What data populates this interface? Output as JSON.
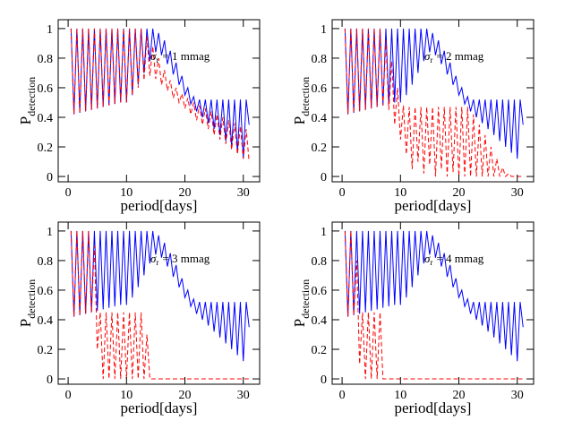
{
  "chart_data": [
    {
      "type": "line",
      "xlabel": "period[days]",
      "ylabel": {
        "main": "P",
        "sub": "detection"
      },
      "annotation": {
        "symbol": "σ",
        "sub": "r",
        "text": "= 1 mmag"
      },
      "xlim": [
        -1.7,
        32.8
      ],
      "ylim": [
        -0.036,
        1.06
      ],
      "xticks": [
        0,
        10,
        20,
        30
      ],
      "yticks": [
        0,
        0.2,
        0.4,
        0.6,
        0.8,
        1
      ],
      "x": [
        0.5,
        1,
        1.5,
        2,
        2.5,
        3,
        3.5,
        4,
        4.5,
        5,
        5.5,
        6,
        6.5,
        7,
        7.5,
        8,
        8.5,
        9,
        9.5,
        10,
        10.5,
        11,
        11.5,
        12,
        12.5,
        13,
        13.5,
        14,
        14.5,
        15,
        15.5,
        16,
        16.5,
        17,
        17.5,
        18,
        18.5,
        19,
        19.5,
        20,
        20.5,
        21,
        21.5,
        22,
        22.5,
        23,
        23.5,
        24,
        24.5,
        25,
        25.5,
        26,
        26.5,
        27,
        27.5,
        28,
        28.5,
        29,
        29.5,
        30,
        30.5,
        31
      ],
      "series": [
        {
          "color": "#0000ff",
          "dash": false,
          "values": [
            1,
            0.42,
            1,
            0.43,
            1,
            0.44,
            1,
            0.45,
            1,
            0.46,
            1,
            0.47,
            1,
            0.48,
            1,
            0.49,
            1,
            0.5,
            1,
            0.5,
            1,
            0.55,
            1,
            0.62,
            1,
            0.7,
            1,
            0.78,
            1,
            0.84,
            0.97,
            0.82,
            0.92,
            0.76,
            0.85,
            0.69,
            0.77,
            0.62,
            0.68,
            0.55,
            0.6,
            0.49,
            0.54,
            0.44,
            0.52,
            0.4,
            0.52,
            0.36,
            0.52,
            0.32,
            0.52,
            0.28,
            0.52,
            0.24,
            0.52,
            0.2,
            0.52,
            0.16,
            0.52,
            0.12,
            0.52,
            0.35
          ]
        },
        {
          "color": "#ff0000",
          "dash": true,
          "values": [
            1,
            0.42,
            1,
            0.43,
            1,
            0.44,
            1,
            0.45,
            1,
            0.46,
            1,
            0.47,
            1,
            0.48,
            1,
            0.49,
            1,
            0.5,
            1,
            0.5,
            1,
            0.55,
            1,
            0.6,
            1,
            0.65,
            0.95,
            0.68,
            0.88,
            0.66,
            0.8,
            0.62,
            0.72,
            0.58,
            0.65,
            0.53,
            0.6,
            0.5,
            0.56,
            0.46,
            0.53,
            0.42,
            0.5,
            0.38,
            0.48,
            0.35,
            0.46,
            0.32,
            0.44,
            0.28,
            0.42,
            0.25,
            0.4,
            0.22,
            0.38,
            0.18,
            0.36,
            0.15,
            0.34,
            0.12,
            0.32,
            0.1
          ]
        }
      ]
    },
    {
      "type": "line",
      "xlabel": "period[days]",
      "ylabel": {
        "main": "P",
        "sub": "detection"
      },
      "annotation": {
        "symbol": "σ",
        "sub": "r",
        "text": "= 2 mmag"
      },
      "xlim": [
        -1.7,
        32.8
      ],
      "ylim": [
        -0.036,
        1.06
      ],
      "xticks": [
        0,
        10,
        20,
        30
      ],
      "yticks": [
        0,
        0.2,
        0.4,
        0.6,
        0.8,
        1
      ],
      "x": [
        0.5,
        1,
        1.5,
        2,
        2.5,
        3,
        3.5,
        4,
        4.5,
        5,
        5.5,
        6,
        6.5,
        7,
        7.5,
        8,
        8.5,
        9,
        9.5,
        10,
        10.5,
        11,
        11.5,
        12,
        12.5,
        13,
        13.5,
        14,
        14.5,
        15,
        15.5,
        16,
        16.5,
        17,
        17.5,
        18,
        18.5,
        19,
        19.5,
        20,
        20.5,
        21,
        21.5,
        22,
        22.5,
        23,
        23.5,
        24,
        24.5,
        25,
        25.5,
        26,
        26.5,
        27,
        27.5,
        28,
        28.5,
        29,
        29.5,
        30,
        30.5,
        31
      ],
      "series": [
        {
          "color": "#0000ff",
          "dash": false,
          "values": [
            1,
            0.42,
            1,
            0.43,
            1,
            0.44,
            1,
            0.45,
            1,
            0.46,
            1,
            0.47,
            1,
            0.48,
            1,
            0.49,
            1,
            0.5,
            1,
            0.5,
            1,
            0.55,
            1,
            0.62,
            1,
            0.7,
            1,
            0.78,
            1,
            0.84,
            0.97,
            0.82,
            0.92,
            0.76,
            0.85,
            0.69,
            0.77,
            0.62,
            0.68,
            0.55,
            0.6,
            0.49,
            0.54,
            0.44,
            0.52,
            0.4,
            0.52,
            0.36,
            0.52,
            0.32,
            0.52,
            0.28,
            0.52,
            0.24,
            0.52,
            0.2,
            0.52,
            0.16,
            0.52,
            0.12,
            0.52,
            0.35
          ]
        },
        {
          "color": "#ff0000",
          "dash": true,
          "values": [
            1,
            0.42,
            1,
            0.43,
            1,
            0.44,
            1,
            0.45,
            1,
            0.46,
            1,
            0.47,
            1,
            0.48,
            0.92,
            0.45,
            0.78,
            0.35,
            0.6,
            0.25,
            0.48,
            0.15,
            0.47,
            0.05,
            0.47,
            0.1,
            0.47,
            0.02,
            0.47,
            0.08,
            0.47,
            0,
            0.47,
            0.05,
            0.47,
            0,
            0.47,
            0.03,
            0.47,
            0,
            0.47,
            0,
            0.47,
            0,
            0.42,
            0,
            0.35,
            0,
            0.28,
            0,
            0.2,
            0,
            0.12,
            0,
            0.06,
            0,
            0.02,
            0,
            0,
            0,
            0,
            0
          ]
        }
      ]
    },
    {
      "type": "line",
      "xlabel": "period[days]",
      "ylabel": {
        "main": "P",
        "sub": "detection"
      },
      "annotation": {
        "symbol": "σ",
        "sub": "r",
        "text": "= 3 mmag"
      },
      "xlim": [
        -1.7,
        32.8
      ],
      "ylim": [
        -0.036,
        1.06
      ],
      "xticks": [
        0,
        10,
        20,
        30
      ],
      "yticks": [
        0,
        0.2,
        0.4,
        0.6,
        0.8,
        1
      ],
      "x": [
        0.5,
        1,
        1.5,
        2,
        2.5,
        3,
        3.5,
        4,
        4.5,
        5,
        5.5,
        6,
        6.5,
        7,
        7.5,
        8,
        8.5,
        9,
        9.5,
        10,
        10.5,
        11,
        11.5,
        12,
        12.5,
        13,
        13.5,
        14,
        14.5,
        15,
        15.5,
        16,
        16.5,
        17,
        17.5,
        18,
        18.5,
        19,
        19.5,
        20,
        20.5,
        21,
        21.5,
        22,
        22.5,
        23,
        23.5,
        24,
        24.5,
        25,
        25.5,
        26,
        26.5,
        27,
        27.5,
        28,
        28.5,
        29,
        29.5,
        30,
        30.5,
        31
      ],
      "series": [
        {
          "color": "#0000ff",
          "dash": false,
          "values": [
            1,
            0.42,
            1,
            0.43,
            1,
            0.44,
            1,
            0.45,
            1,
            0.46,
            1,
            0.47,
            1,
            0.48,
            1,
            0.49,
            1,
            0.5,
            1,
            0.5,
            1,
            0.55,
            1,
            0.62,
            1,
            0.7,
            1,
            0.78,
            1,
            0.84,
            0.97,
            0.82,
            0.92,
            0.76,
            0.85,
            0.69,
            0.77,
            0.62,
            0.68,
            0.55,
            0.6,
            0.49,
            0.54,
            0.44,
            0.52,
            0.4,
            0.52,
            0.36,
            0.52,
            0.32,
            0.52,
            0.28,
            0.52,
            0.24,
            0.52,
            0.2,
            0.52,
            0.16,
            0.52,
            0.12,
            0.52,
            0.35
          ]
        },
        {
          "color": "#ff0000",
          "dash": true,
          "values": [
            1,
            0.42,
            1,
            0.43,
            1,
            0.44,
            1,
            0.45,
            0.9,
            0.2,
            0.45,
            0,
            0.45,
            0,
            0.45,
            0,
            0.45,
            0,
            0.45,
            0,
            0.45,
            0,
            0.45,
            0,
            0.45,
            0,
            0.3,
            0,
            0,
            0,
            0,
            0,
            0,
            0,
            0,
            0,
            0,
            0,
            0,
            0,
            0,
            0,
            0,
            0,
            0,
            0,
            0,
            0,
            0,
            0,
            0,
            0,
            0,
            0,
            0,
            0,
            0,
            0,
            0,
            0,
            0,
            0
          ]
        }
      ]
    },
    {
      "type": "line",
      "xlabel": "period[days]",
      "ylabel": {
        "main": "P",
        "sub": "detection"
      },
      "annotation": {
        "symbol": "σ",
        "sub": "r",
        "text": "= 4 mmag"
      },
      "xlim": [
        -1.7,
        32.8
      ],
      "ylim": [
        -0.036,
        1.06
      ],
      "xticks": [
        0,
        10,
        20,
        30
      ],
      "yticks": [
        0,
        0.2,
        0.4,
        0.6,
        0.8,
        1
      ],
      "x": [
        0.5,
        1,
        1.5,
        2,
        2.5,
        3,
        3.5,
        4,
        4.5,
        5,
        5.5,
        6,
        6.5,
        7,
        7.5,
        8,
        8.5,
        9,
        9.5,
        10,
        10.5,
        11,
        11.5,
        12,
        12.5,
        13,
        13.5,
        14,
        14.5,
        15,
        15.5,
        16,
        16.5,
        17,
        17.5,
        18,
        18.5,
        19,
        19.5,
        20,
        20.5,
        21,
        21.5,
        22,
        22.5,
        23,
        23.5,
        24,
        24.5,
        25,
        25.5,
        26,
        26.5,
        27,
        27.5,
        28,
        28.5,
        29,
        29.5,
        30,
        30.5,
        31
      ],
      "series": [
        {
          "color": "#0000ff",
          "dash": false,
          "values": [
            1,
            0.42,
            1,
            0.43,
            1,
            0.44,
            1,
            0.45,
            1,
            0.46,
            1,
            0.47,
            1,
            0.48,
            1,
            0.49,
            1,
            0.5,
            1,
            0.5,
            1,
            0.55,
            1,
            0.62,
            1,
            0.7,
            1,
            0.78,
            1,
            0.84,
            0.97,
            0.82,
            0.92,
            0.76,
            0.85,
            0.69,
            0.77,
            0.62,
            0.68,
            0.55,
            0.6,
            0.49,
            0.54,
            0.44,
            0.52,
            0.4,
            0.52,
            0.36,
            0.52,
            0.32,
            0.52,
            0.28,
            0.52,
            0.24,
            0.52,
            0.2,
            0.52,
            0.16,
            0.52,
            0.12,
            0.52,
            0.35
          ]
        },
        {
          "color": "#ff0000",
          "dash": true,
          "values": [
            1,
            0.42,
            1,
            0.43,
            0.8,
            0.1,
            0.45,
            0,
            0.45,
            0,
            0.45,
            0,
            0.45,
            0,
            0,
            0,
            0,
            0,
            0,
            0,
            0,
            0,
            0,
            0,
            0,
            0,
            0,
            0,
            0,
            0,
            0,
            0,
            0,
            0,
            0,
            0,
            0,
            0,
            0,
            0,
            0,
            0,
            0,
            0,
            0,
            0,
            0,
            0,
            0,
            0,
            0,
            0,
            0,
            0,
            0,
            0,
            0,
            0,
            0,
            0,
            0,
            0
          ]
        }
      ]
    }
  ]
}
